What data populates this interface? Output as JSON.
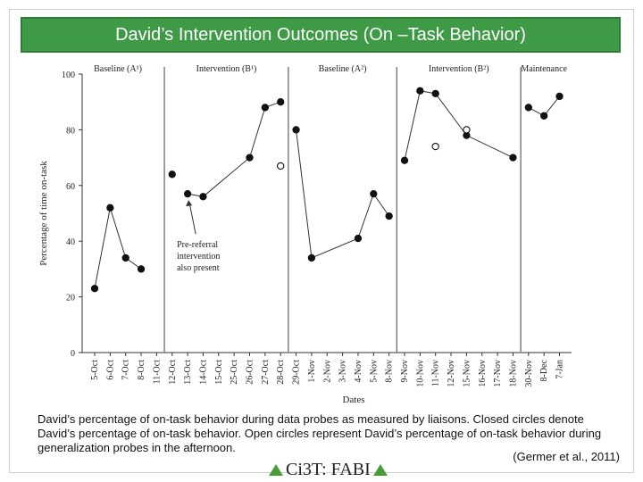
{
  "slide": {
    "title": "David’s Intervention Outcomes (On –Task Behavior)",
    "caption": "David’s percentage of on-task behavior during data probes as measured by liaisons. Closed circles denote David’s percentage of on-task behavior. Open circles represent David’s percentage of on-task behavior during generalization probes in the afternoon.",
    "citation": "(Germer et al., 2011)",
    "logo_text": "Ci3T: FABI",
    "colors": {
      "title_bg": "#3e9a46",
      "logo_triangle": "#4a9a3a"
    }
  },
  "chart_data": {
    "type": "scatter",
    "xlabel": "Dates",
    "ylabel": "Percentage of time on-task",
    "ylim": [
      0,
      100
    ],
    "yticks": [
      0,
      20,
      40,
      60,
      80,
      100
    ],
    "categories": [
      "5-Oct",
      "6-Oct",
      "7-Oct",
      "8-Oct",
      "11-Oct",
      "12-Oct",
      "13-Oct",
      "14-Oct",
      "15-Oct",
      "25-Oct",
      "26-Oct",
      "27-Oct",
      "28-Oct",
      "29-Oct",
      "1-Nov",
      "2-Nov",
      "3-Nov",
      "4-Nov",
      "5-Nov",
      "8-Nov",
      "9-Nov",
      "10-Nov",
      "11-Nov",
      "12-Nov",
      "15-Nov",
      "16-Nov",
      "17-Nov",
      "18-Nov",
      "30-Nov",
      "8-Dec",
      "7-Jan"
    ],
    "phases": [
      {
        "label": "Baseline (A¹)",
        "start": 0,
        "end": 3
      },
      {
        "label": "Intervention (B¹)",
        "start": 5,
        "end": 12
      },
      {
        "label": "Baseline (A²)",
        "start": 13,
        "end": 19
      },
      {
        "label": "Intervention (B²)",
        "start": 20,
        "end": 27
      },
      {
        "label": "Maintenance",
        "start": 28,
        "end": 30
      }
    ],
    "phase_lines_after": [
      4,
      12,
      19,
      27
    ],
    "series": [
      {
        "filled": true,
        "connected": true,
        "points": [
          [
            [
              0,
              23
            ],
            [
              1,
              52
            ],
            [
              2,
              34
            ],
            [
              3,
              30
            ]
          ],
          [
            [
              5,
              64
            ]
          ],
          [
            [
              6,
              57
            ],
            [
              7,
              56
            ],
            [
              10,
              70
            ],
            [
              11,
              88
            ],
            [
              12,
              90
            ]
          ],
          [
            [
              13,
              80
            ],
            [
              14,
              34
            ],
            [
              17,
              41
            ],
            [
              18,
              57
            ],
            [
              19,
              49
            ]
          ],
          [
            [
              20,
              69
            ],
            [
              21,
              94
            ],
            [
              22,
              93
            ],
            [
              24,
              78
            ],
            [
              27,
              70
            ]
          ],
          [
            [
              28,
              88
            ],
            [
              29,
              85
            ],
            [
              30,
              92
            ]
          ]
        ]
      },
      {
        "filled": false,
        "connected": false,
        "points": [
          [
            [
              12,
              67
            ]
          ],
          [
            [
              22,
              74
            ]
          ],
          [
            [
              24,
              80
            ]
          ]
        ]
      }
    ],
    "annotation": {
      "lines": [
        "Pre-referral",
        "intervention",
        "also present"
      ],
      "target_index": 6,
      "target_value": 57
    }
  }
}
